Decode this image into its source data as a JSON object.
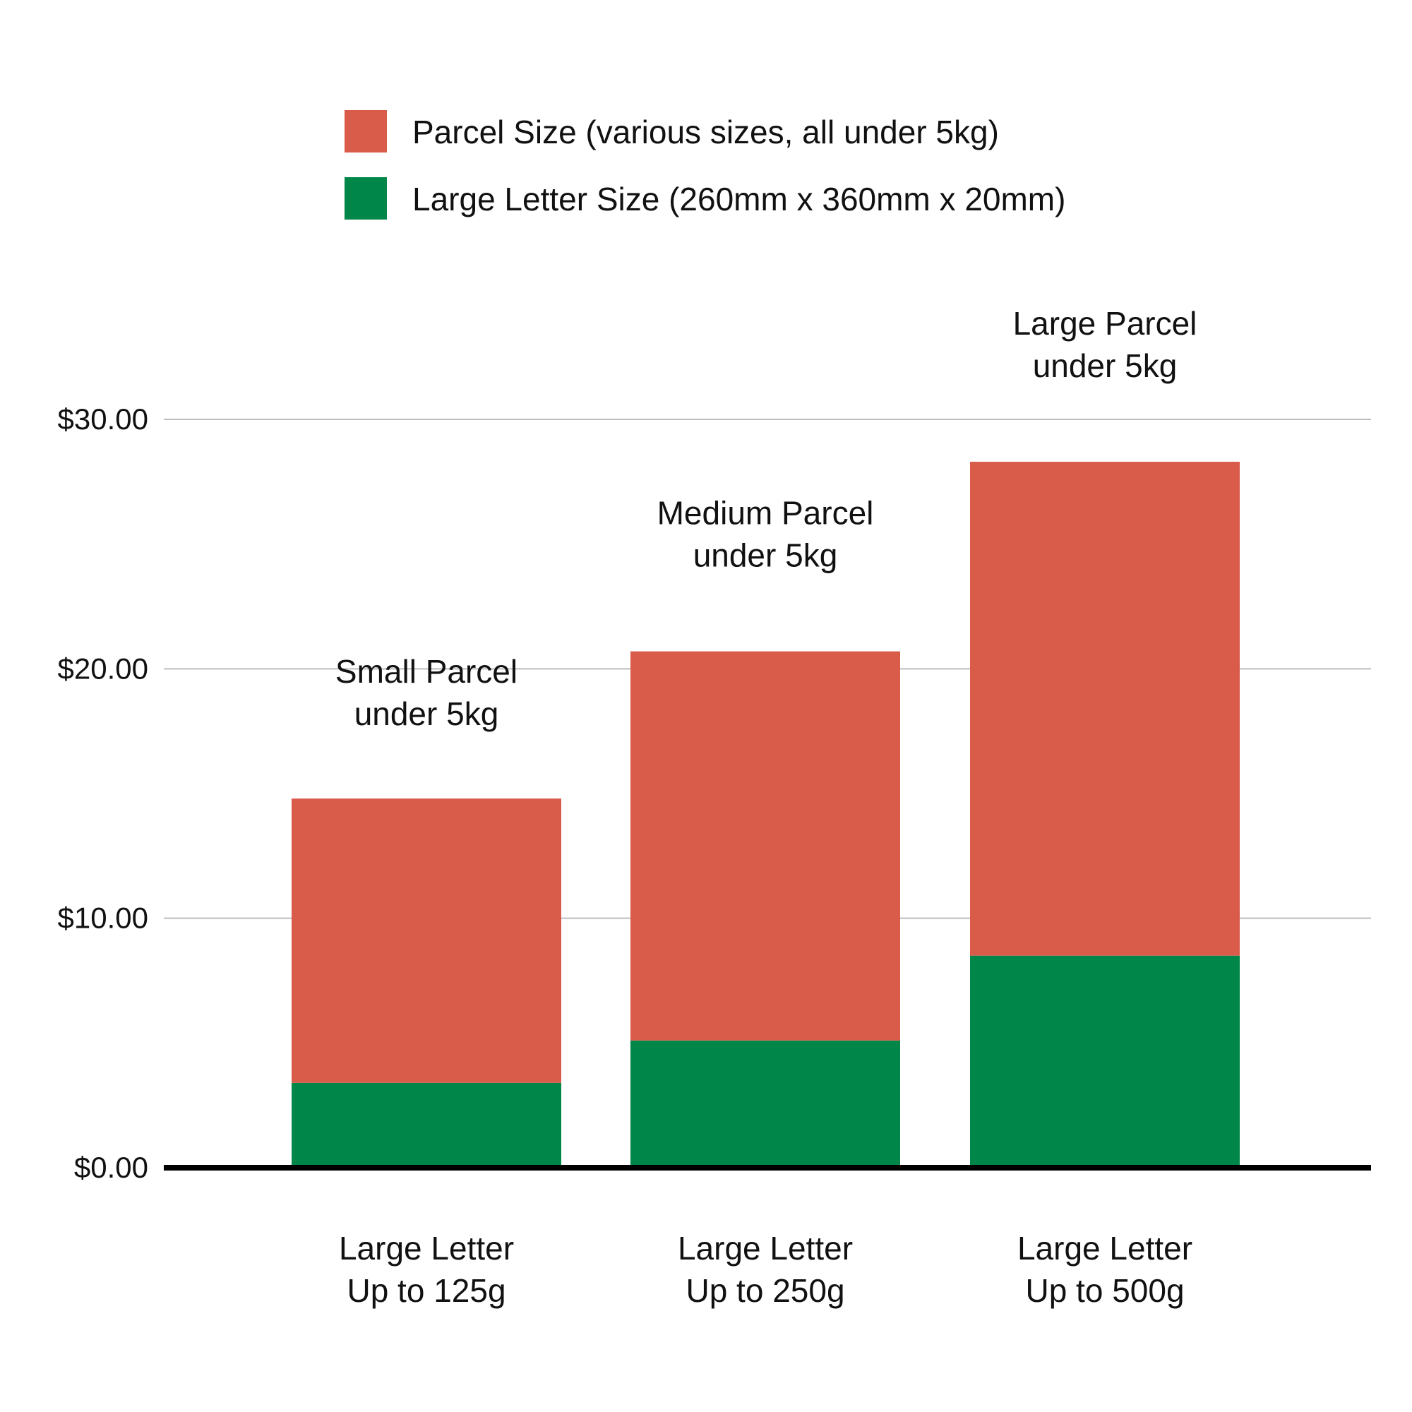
{
  "colors": {
    "parcel": "#D95C4B",
    "large_letter": "#008648",
    "gridline": "#BDBDBD",
    "baseline": "#000000",
    "text": "#111111"
  },
  "legend": {
    "placement": "top-center",
    "items": [
      {
        "label": "Parcel Size (various sizes, all under 5kg)",
        "color_key": "parcel"
      },
      {
        "label": "Large Letter Size (260mm x 360mm x 20mm)",
        "color_key": "large_letter"
      }
    ]
  },
  "chart_data": {
    "type": "bar",
    "stacked": true,
    "categories": [
      [
        "Large Letter",
        "Up to 125g"
      ],
      [
        "Large Letter",
        "Up to 250g"
      ],
      [
        "Large Letter",
        "Up to 500g"
      ]
    ],
    "series": [
      {
        "name": "Large Letter Size (260mm x 360mm x 20mm)",
        "values": [
          3.4,
          5.1,
          8.5
        ],
        "color_key": "large_letter"
      },
      {
        "name": "Parcel Size (various sizes, all under 5kg)",
        "values": [
          11.4,
          15.6,
          19.8
        ],
        "color_key": "parcel"
      }
    ],
    "bar_top_labels": [
      [
        "Small Parcel",
        "under 5kg"
      ],
      [
        "Medium Parcel",
        "under 5kg"
      ],
      [
        "Large Parcel",
        "under 5kg"
      ]
    ],
    "yticks": [
      0,
      10,
      20,
      30
    ],
    "ytick_labels": [
      "$0.00",
      "$10.00",
      "$20.00",
      "$30.00"
    ],
    "ylim": [
      0,
      30
    ],
    "grid": true,
    "title": "",
    "xlabel": "",
    "ylabel": ""
  }
}
